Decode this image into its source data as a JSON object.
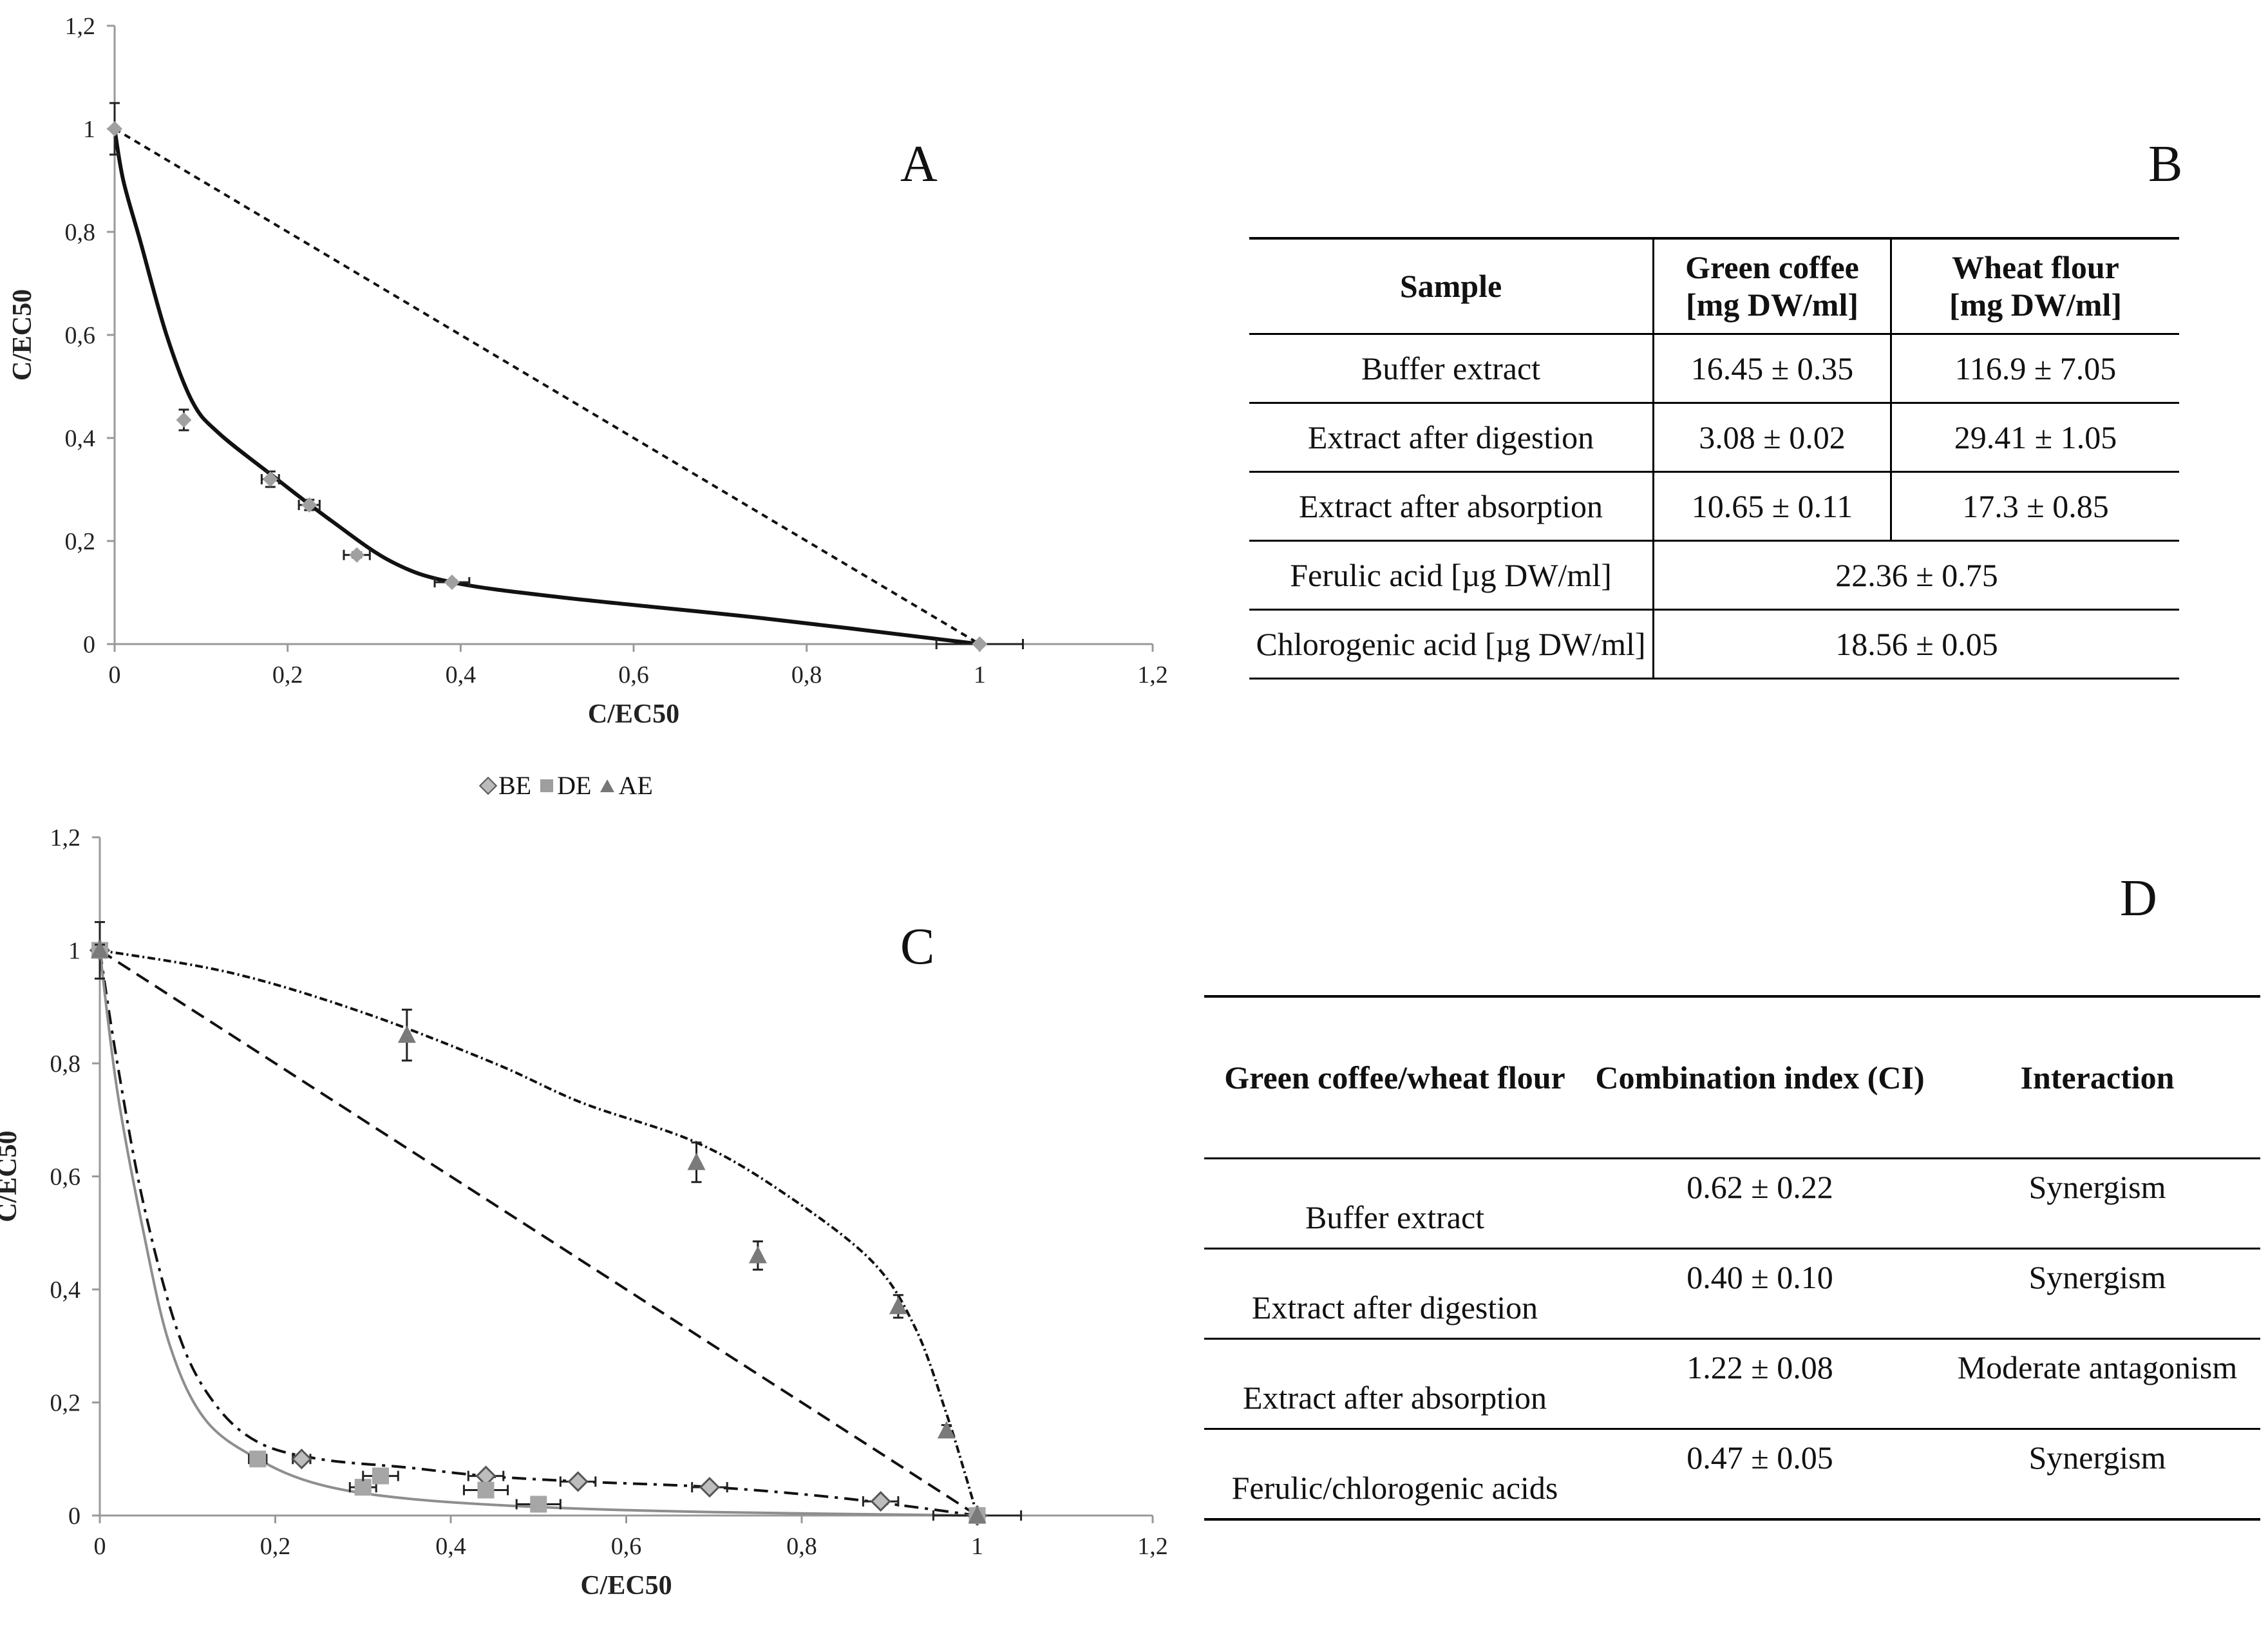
{
  "panels": {
    "a": "A",
    "b": "B",
    "c": "C",
    "d": "D"
  },
  "chart_data": [
    {
      "id": "A",
      "type": "scatter",
      "xlabel": "C/EC50",
      "ylabel": "C/EC50",
      "xlim": [
        0,
        1.2
      ],
      "ylim": [
        0,
        1.2
      ],
      "xticks": [
        "0",
        "0,2",
        "0,4",
        "0,6",
        "0,8",
        "1",
        "1,2"
      ],
      "yticks": [
        "0",
        "0,2",
        "0,4",
        "0,6",
        "0,8",
        "1",
        "1,2"
      ],
      "points": [
        {
          "x": 0,
          "y": 1.0,
          "yerr": 0.05,
          "xerr": 0
        },
        {
          "x": 0.08,
          "y": 0.435,
          "yerr": 0.02,
          "xerr": 0
        },
        {
          "x": 0.18,
          "y": 0.32,
          "yerr": 0.015,
          "xerr": 0.01
        },
        {
          "x": 0.225,
          "y": 0.27,
          "yerr": 0.01,
          "xerr": 0.012
        },
        {
          "x": 0.28,
          "y": 0.173,
          "yerr": 0.005,
          "xerr": 0.015
        },
        {
          "x": 0.39,
          "y": 0.12,
          "yerr": 0.004,
          "xerr": 0.02
        },
        {
          "x": 1.0,
          "y": 0.0,
          "yerr": 0,
          "xerr": 0.05
        }
      ],
      "curve": [
        [
          0,
          1.0
        ],
        [
          0.01,
          0.9
        ],
        [
          0.03,
          0.78
        ],
        [
          0.06,
          0.6
        ],
        [
          0.09,
          0.47
        ],
        [
          0.12,
          0.41
        ],
        [
          0.18,
          0.33
        ],
        [
          0.25,
          0.24
        ],
        [
          0.32,
          0.16
        ],
        [
          0.39,
          0.12
        ],
        [
          0.52,
          0.09
        ],
        [
          0.75,
          0.05
        ],
        [
          1.0,
          0.0
        ]
      ],
      "additivity_line": [
        [
          0,
          1.0
        ],
        [
          1.0,
          0.0
        ]
      ]
    },
    {
      "id": "C",
      "type": "scatter",
      "xlabel": "C/EC50",
      "ylabel": "C/EC50",
      "xlim": [
        0,
        1.2
      ],
      "ylim": [
        0,
        1.2
      ],
      "xticks": [
        "0",
        "0,2",
        "0,4",
        "0,6",
        "0,8",
        "1",
        "1,2"
      ],
      "yticks": [
        "0",
        "0,2",
        "0,4",
        "0,6",
        "0,8",
        "1",
        "1,2"
      ],
      "legend": [
        "BE",
        "DE",
        "AE"
      ],
      "series": [
        {
          "name": "BE",
          "marker": "diamond",
          "points": [
            {
              "x": 0,
              "y": 1.0,
              "yerr": 0.05,
              "xerr": 0
            },
            {
              "x": 0.23,
              "y": 0.1,
              "yerr": 0.005,
              "xerr": 0.01
            },
            {
              "x": 0.44,
              "y": 0.07,
              "yerr": 0.005,
              "xerr": 0.02
            },
            {
              "x": 0.545,
              "y": 0.06,
              "yerr": 0.005,
              "xerr": 0.02
            },
            {
              "x": 0.695,
              "y": 0.05,
              "yerr": 0.005,
              "xerr": 0.02
            },
            {
              "x": 0.89,
              "y": 0.025,
              "yerr": 0.003,
              "xerr": 0.02
            },
            {
              "x": 1.0,
              "y": 0.0,
              "yerr": 0,
              "xerr": 0.05
            }
          ],
          "curve": [
            [
              0,
              1.0
            ],
            [
              0.02,
              0.8
            ],
            [
              0.05,
              0.55
            ],
            [
              0.09,
              0.32
            ],
            [
              0.13,
              0.2
            ],
            [
              0.18,
              0.13
            ],
            [
              0.25,
              0.1
            ],
            [
              0.35,
              0.085
            ],
            [
              0.44,
              0.07
            ],
            [
              0.55,
              0.06
            ],
            [
              0.7,
              0.05
            ],
            [
              0.85,
              0.03
            ],
            [
              1.0,
              0.0
            ]
          ]
        },
        {
          "name": "DE",
          "marker": "square",
          "points": [
            {
              "x": 0,
              "y": 1.0,
              "yerr": 0.01,
              "xerr": 0
            },
            {
              "x": 0.18,
              "y": 0.1,
              "yerr": 0.005,
              "xerr": 0.01
            },
            {
              "x": 0.3,
              "y": 0.05,
              "yerr": 0.005,
              "xerr": 0.015
            },
            {
              "x": 0.32,
              "y": 0.07,
              "yerr": 0.005,
              "xerr": 0.02
            },
            {
              "x": 0.44,
              "y": 0.045,
              "yerr": 0.004,
              "xerr": 0.025
            },
            {
              "x": 0.5,
              "y": 0.02,
              "yerr": 0.003,
              "xerr": 0.025
            },
            {
              "x": 1.0,
              "y": 0.0,
              "yerr": 0,
              "xerr": 0
            }
          ],
          "curve": [
            [
              0,
              1.0
            ],
            [
              0.02,
              0.75
            ],
            [
              0.05,
              0.5
            ],
            [
              0.08,
              0.3
            ],
            [
              0.12,
              0.17
            ],
            [
              0.18,
              0.1
            ],
            [
              0.25,
              0.055
            ],
            [
              0.35,
              0.03
            ],
            [
              0.5,
              0.015
            ],
            [
              0.7,
              0.006
            ],
            [
              1.0,
              0.0
            ]
          ]
        },
        {
          "name": "AE",
          "marker": "triangle",
          "points": [
            {
              "x": 0,
              "y": 1.0,
              "yerr": 0.01,
              "xerr": 0
            },
            {
              "x": 0.35,
              "y": 0.85,
              "yerr": 0.045,
              "xerr": 0
            },
            {
              "x": 0.68,
              "y": 0.625,
              "yerr": 0.035,
              "xerr": 0
            },
            {
              "x": 0.75,
              "y": 0.46,
              "yerr": 0.025,
              "xerr": 0
            },
            {
              "x": 0.91,
              "y": 0.37,
              "yerr": 0.02,
              "xerr": 0
            },
            {
              "x": 0.965,
              "y": 0.15,
              "yerr": 0.01,
              "xerr": 0
            },
            {
              "x": 1.0,
              "y": 0.0,
              "yerr": 0,
              "xerr": 0
            }
          ],
          "curve": [
            [
              0,
              1.0
            ],
            [
              0.15,
              0.96
            ],
            [
              0.3,
              0.89
            ],
            [
              0.45,
              0.8
            ],
            [
              0.55,
              0.73
            ],
            [
              0.68,
              0.66
            ],
            [
              0.78,
              0.57
            ],
            [
              0.88,
              0.45
            ],
            [
              0.93,
              0.33
            ],
            [
              0.965,
              0.18
            ],
            [
              0.985,
              0.08
            ],
            [
              1.0,
              0.0
            ]
          ]
        }
      ],
      "additivity_line": [
        [
          0,
          1.0
        ],
        [
          1.0,
          0.0
        ]
      ]
    }
  ],
  "tableB": {
    "headers": {
      "sample": "Sample",
      "coffee1": "Green coffee",
      "coffee2": "[mg DW/ml]",
      "wheat1": "Wheat flour",
      "wheat2": "[mg DW/ml]"
    },
    "rows": [
      {
        "name": "Buffer extract",
        "coffee": "16.45 ± 0.35",
        "wheat": "116.9 ± 7.05"
      },
      {
        "name": "Extract after digestion",
        "coffee": "3.08 ± 0.02",
        "wheat": "29.41 ± 1.05"
      },
      {
        "name": "Extract after absorption",
        "coffee": "10.65 ± 0.11",
        "wheat": "17.3 ± 0.85"
      }
    ],
    "merged_rows": [
      {
        "name": "Ferulic acid [µg DW/ml]",
        "value": "22.36 ± 0.75"
      },
      {
        "name": "Chlorogenic acid [µg DW/ml]",
        "value": "18.56 ± 0.05"
      }
    ]
  },
  "tableD": {
    "headers": {
      "col1": "Green coffee/wheat flour",
      "col2": "Combination index (CI)",
      "col3": "Interaction"
    },
    "rows": [
      {
        "name": "Buffer extract",
        "ci": "0.62 ± 0.22",
        "interaction": "Synergism"
      },
      {
        "name": "Extract after digestion",
        "ci": "0.40 ± 0.10",
        "interaction": "Synergism"
      },
      {
        "name": "Extract after absorption",
        "ci": "1.22 ± 0.08",
        "interaction": "Moderate antagonism"
      },
      {
        "name": "Ferulic/chlorogenic acids",
        "ci": "0.47 ± 0.05",
        "interaction": "Synergism"
      }
    ]
  }
}
